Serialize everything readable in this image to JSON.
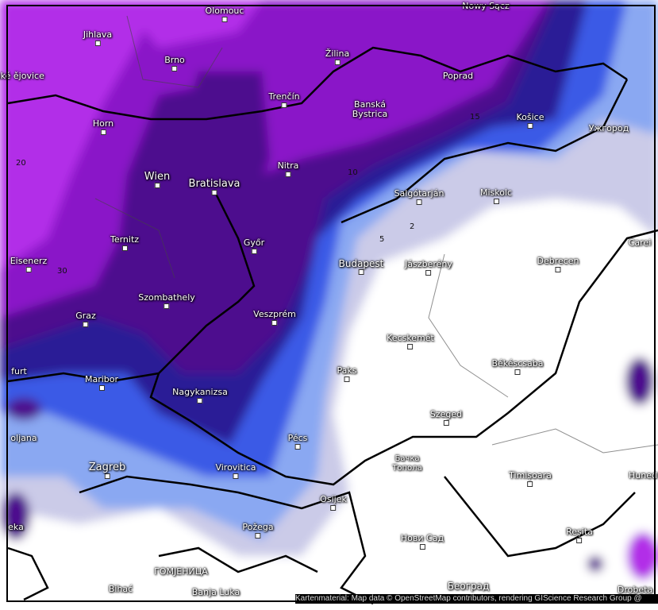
{
  "map": {
    "colors": {
      "bright_purple": "#b22ee8",
      "purple": "#8a18c8",
      "dark_purple": "#4d0c8e",
      "indigo": "#2c1a96",
      "blue": "#3a5ae6",
      "light_blue": "#8aa8f2",
      "lavender": "#cbcbe8",
      "white": "#ffffff",
      "border": "#000000"
    },
    "cities": [
      "Olomouc",
      "Nowy Sącz",
      "Jihlava",
      "Brno",
      "eské ějovice",
      "Žilina",
      "Poprad",
      "Trenčín",
      "Banská Bystrica",
      "Košice",
      "Ужгород",
      "Horn",
      "Nitra",
      "Wien",
      "Bratislava",
      "Salgótarján",
      "Miskolc",
      "Ternitz",
      "Győr",
      "Eisenerz",
      "Budapest",
      "Jászberény",
      "Debrecen",
      "Carei",
      "Szombathely",
      "Graz",
      "Veszprém",
      "Kecskemét",
      "Békéscsaba",
      "Maribor",
      "furt",
      "Paks",
      "Nagykanizsa",
      "Szeged",
      "oljana",
      "Pécs",
      "Zagreb",
      "Virovitica",
      "Бачка Топола",
      "Timișoara",
      "Huned",
      "Osijek",
      "Požega",
      "eka",
      "Нови Сад",
      "Reșita",
      "ГОМЈЕНИЦА",
      "Bihać",
      "Banja Luka",
      "Београд",
      "Drobeta"
    ],
    "contour_labels": [
      "20",
      "15",
      "10",
      "5",
      "2",
      "30"
    ],
    "attribution": "Kartenmaterial: Map data © OpenStreetMap contributors, rendering GIScience Research Group @"
  }
}
